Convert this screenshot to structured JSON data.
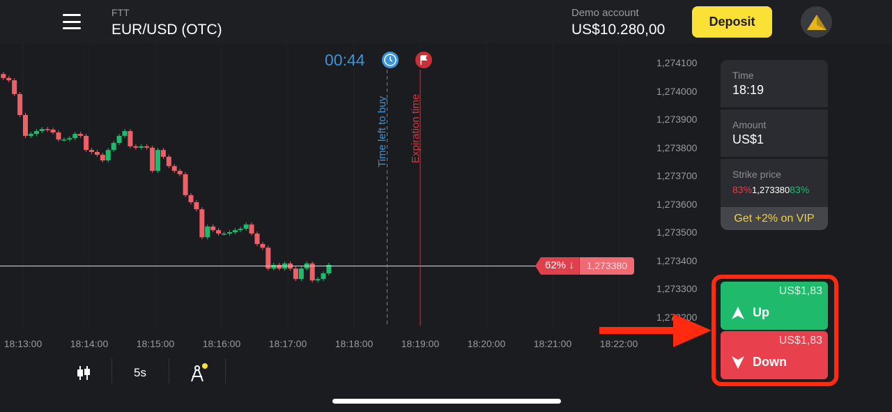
{
  "header": {
    "menu_icon": "hamburger-icon",
    "platform": "FTT",
    "asset": "EUR/USD (OTC)",
    "account_label": "Demo account",
    "balance": "US$10.280,00",
    "deposit_label": "Deposit",
    "avatar_icon": "gold-triangle-icon"
  },
  "chart": {
    "timer": "00:44",
    "timer_icon": "clock-icon",
    "expiration_icon": "flag-icon",
    "time_left_label": "Time left to buy",
    "expiration_label": "Expiration time",
    "current_pct": "62% ↓",
    "current_price": "1,273380",
    "colors": {
      "up": "#1fba6c",
      "down": "#ef5f66",
      "timer": "#3c94d8",
      "expiration": "#d8353d"
    }
  },
  "chart_data": {
    "type": "candlestick",
    "interval": "5s",
    "start_time": "18:12:40",
    "first_open": 1.27406,
    "closes": [
      1.274046,
      1.274038,
      1.273989,
      1.273915,
      1.273841,
      1.273848,
      1.273858,
      1.273865,
      1.273863,
      1.273853,
      1.273828,
      1.273828,
      1.273833,
      1.273848,
      1.273841,
      1.273791,
      1.273784,
      1.273774,
      1.273754,
      1.273791,
      1.273816,
      1.273841,
      1.273858,
      1.273804,
      1.273799,
      1.273804,
      1.273799,
      1.273717,
      1.273791,
      1.273767,
      1.273734,
      1.273717,
      1.273705,
      1.273631,
      1.273606,
      1.273581,
      1.273482,
      1.27352,
      1.273507,
      1.273495,
      1.273495,
      1.2735,
      1.273507,
      1.273512,
      1.273527,
      1.273495,
      1.273458,
      1.273445,
      1.273371,
      1.273384,
      1.273371,
      1.273389,
      1.273371,
      1.273334,
      1.273371,
      1.273389,
      1.273329,
      1.273334,
      1.273354,
      1.273384
    ],
    "current_price": 1.27338,
    "purchase_deadline": "18:18:30",
    "expiration": "18:19:00",
    "y_ticks": [
      "1,274100",
      "1,274000",
      "1,273900",
      "1,273800",
      "1,273700",
      "1,273600",
      "1,273500",
      "1,273400",
      "1,273300",
      "1,273200"
    ],
    "y_tick_values": [
      1.2741,
      1.274,
      1.2739,
      1.2738,
      1.2737,
      1.2736,
      1.2735,
      1.2734,
      1.2733,
      1.2732
    ],
    "x_ticks": [
      "18:13:00",
      "18:14:00",
      "18:15:00",
      "18:16:00",
      "18:17:00",
      "18:18:00",
      "18:19:00",
      "18:20:00",
      "18:21:00",
      "18:22:00"
    ]
  },
  "panel": {
    "time_label": "Time",
    "time_value": "18:19",
    "amount_label": "Amount",
    "amount_value": "US$1",
    "strike_label": "Strike price",
    "strike_down_pct": "83%",
    "strike_value": "1,273380",
    "strike_up_pct": "83%",
    "vip": "Get +2% on VIP"
  },
  "trade": {
    "up_payout": "US$1,83",
    "up_label": "Up",
    "down_payout": "US$1,83",
    "down_label": "Down"
  },
  "toolbar": {
    "chart_type_icon": "candlestick-icon",
    "interval": "5s",
    "drawing_icon": "drawing-tools-icon"
  }
}
